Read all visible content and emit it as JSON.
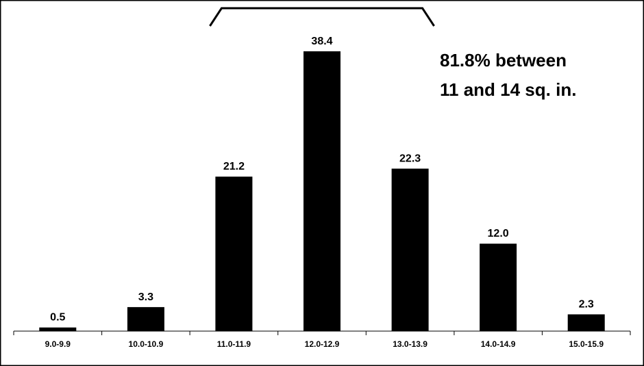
{
  "chart_data": {
    "type": "bar",
    "categories": [
      "9.0-9.9",
      "10.0-10.9",
      "11.0-11.9",
      "12.0-12.9",
      "13.0-13.9",
      "14.0-14.9",
      "15.0-15.9"
    ],
    "values": [
      0.5,
      3.3,
      21.2,
      38.4,
      22.3,
      12.0,
      2.3
    ],
    "data_labels": [
      "0.5",
      "3.3",
      "21.2",
      "38.4",
      "22.3",
      "12.0",
      "2.3"
    ],
    "ylim": [
      0,
      40
    ],
    "grid": false,
    "legend": "none",
    "annotation": {
      "lines": [
        "81.8% between",
        "11 and 14 sq. in."
      ],
      "bracket_span": [
        "11.0-11.9",
        "13.0-13.9"
      ]
    },
    "colors": {
      "bar": "#000000",
      "axis": "#000000",
      "background": "#ffffff"
    }
  }
}
